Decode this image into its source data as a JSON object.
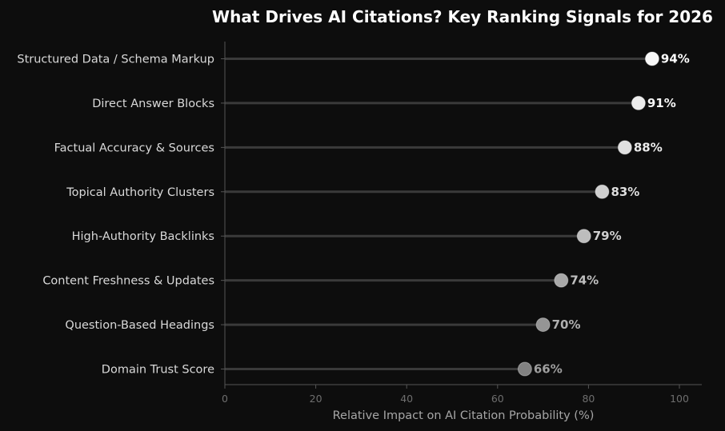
{
  "chart_data": {
    "type": "lollipop",
    "title": "What Drives AI Citations? Key Ranking Signals for 2026",
    "xlabel": "Relative Impact on AI Citation Probability (%)",
    "ylabel": "",
    "xlim": [
      0,
      105
    ],
    "xticks": [
      0,
      20,
      40,
      60,
      80,
      100
    ],
    "xtick_labels": [
      "0",
      "20",
      "40",
      "60",
      "80",
      "100"
    ],
    "grid": false,
    "categories": [
      "Structured Data / Schema Markup",
      "Direct Answer Blocks",
      "Factual Accuracy & Sources",
      "Topical Authority Clusters",
      "High-Authority Backlinks",
      "Content Freshness & Updates",
      "Question-Based Headings",
      "Domain Trust Score"
    ],
    "values": [
      94,
      91,
      88,
      83,
      79,
      74,
      70,
      66
    ],
    "value_labels": [
      "94%",
      "91%",
      "88%",
      "83%",
      "79%",
      "74%",
      "70%",
      "66%"
    ],
    "marker_colors": [
      "#f7f7f7",
      "#ececec",
      "#e0e0e0",
      "#d0d0d0",
      "#bdbdbd",
      "#a8a8a8",
      "#959595",
      "#828282"
    ],
    "label_colors": [
      "#ffffff",
      "#f7f7f7",
      "#ececec",
      "#dedede",
      "#cfcfcf",
      "#bfbfbf",
      "#afafaf",
      "#9f9f9f"
    ],
    "stem_color": "#3a3a3a",
    "background": "#0d0d0d",
    "axis_color": "#555555"
  }
}
